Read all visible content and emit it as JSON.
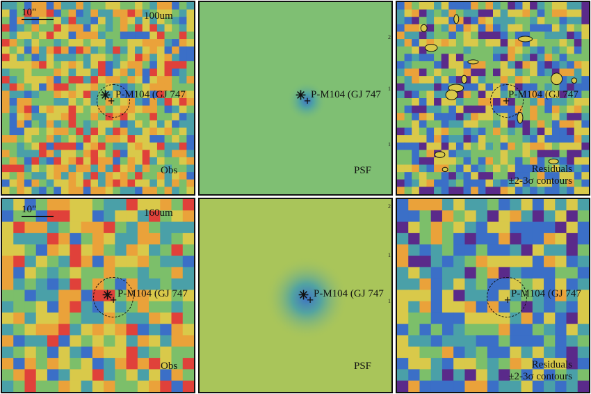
{
  "panels": {
    "top_obs": {
      "band": "100um",
      "scalebar": "10\"",
      "caption": "Obs",
      "source": "P-M104 (GJ 747"
    },
    "top_psf": {
      "caption": "PSF",
      "source": "P-M104 (GJ 747",
      "ticks": [
        "2",
        "1",
        "1"
      ]
    },
    "top_res": {
      "caption_line1": "Residuals",
      "caption_line2": "±2-3σ contours",
      "source": "P-M104 (GJ 747"
    },
    "bot_obs": {
      "band": "160um",
      "scalebar": "10\"",
      "caption": "Obs",
      "source": "P-M104 (GJ 747"
    },
    "bot_psf": {
      "caption": "PSF",
      "source": "P-M104 (GJ 747",
      "ticks": [
        "2",
        "1",
        "1"
      ]
    },
    "bot_res": {
      "caption_line1": "Residuals",
      "caption_line2": "±2-3σ contours",
      "source": "P-M104 (GJ 747"
    }
  },
  "colors": {
    "low": "#5a2a8a",
    "blue": "#3b6fc7",
    "teal": "#4aa0a8",
    "green": "#7cbf6a",
    "yellow": "#d9c94a",
    "orange": "#eaa23a",
    "red": "#e0413a",
    "psf_top_bg": "#7fbf73",
    "psf_bot_bg": "#a9c55a",
    "psf_core": "#3e74c4"
  }
}
